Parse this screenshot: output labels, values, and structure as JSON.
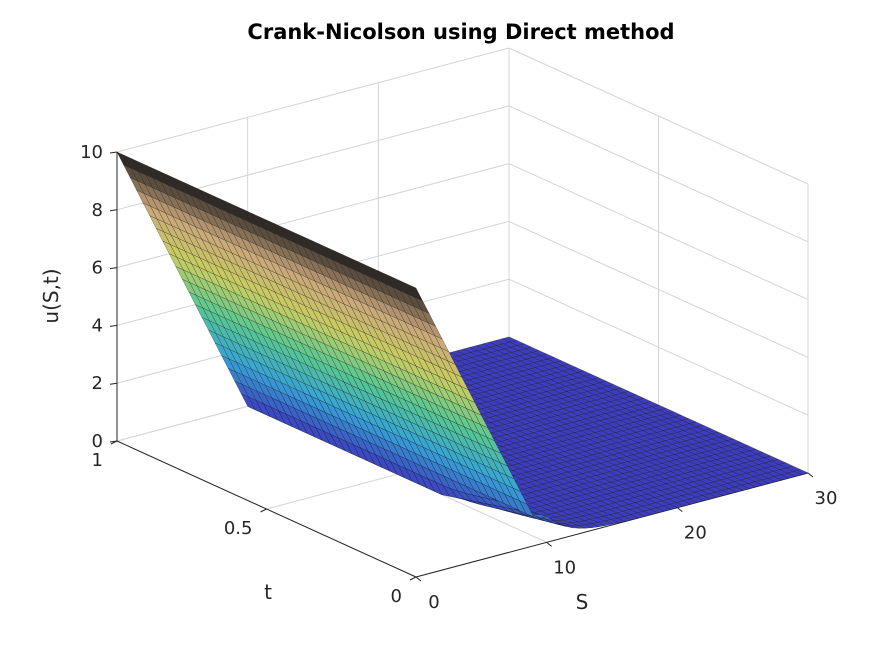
{
  "chart_data": {
    "type": "surface",
    "title": "Crank-Nicolson using Direct method",
    "xlabel": "S",
    "ylabel": "t",
    "zlabel": "u(S,t)",
    "xlim": [
      0,
      30
    ],
    "ylim": [
      0,
      1
    ],
    "zlim": [
      0,
      10
    ],
    "x_ticks": [
      "0",
      "10",
      "20",
      "30"
    ],
    "y_ticks": [
      "0",
      "0.5",
      "1"
    ],
    "z_ticks": [
      "0",
      "2",
      "4",
      "6",
      "8",
      "10"
    ],
    "grid": true,
    "colormap": [
      "#3d3dbe",
      "#36a3d6",
      "#57c891",
      "#c9ce61",
      "#caa57a",
      "#1a1a1a"
    ],
    "surface": {
      "strike_K": 10,
      "s_range": [
        0,
        30
      ],
      "t_range": [
        0,
        1
      ],
      "description": "payoff max(K - S, 0) smoothing toward t = 0"
    }
  }
}
